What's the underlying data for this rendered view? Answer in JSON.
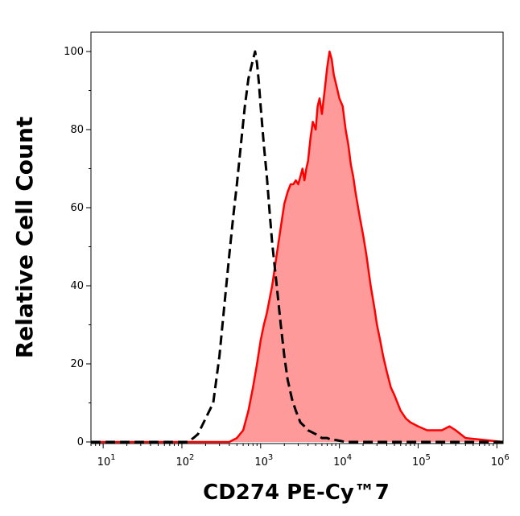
{
  "chart_data": {
    "type": "area",
    "title": "",
    "xlabel": "CD274 PE-Cy™7",
    "ylabel": "Relative Cell Count",
    "x_scale": "log",
    "xlim": [
      7,
      1200000
    ],
    "ylim": [
      0,
      100
    ],
    "x_ticks": [
      {
        "value": 10,
        "base": "10",
        "exp": "1"
      },
      {
        "value": 100,
        "base": "10",
        "exp": "2"
      },
      {
        "value": 1000,
        "base": "10",
        "exp": "3"
      },
      {
        "value": 10000,
        "base": "10",
        "exp": "4"
      },
      {
        "value": 100000,
        "base": "10",
        "exp": "5"
      },
      {
        "value": 1000000,
        "base": "10",
        "exp": "6"
      }
    ],
    "y_ticks": [
      0,
      20,
      40,
      60,
      80,
      100
    ],
    "grid": false,
    "legend": "none",
    "series": [
      {
        "style": "dashed",
        "color": "#000000",
        "fill": "none",
        "x": [
          7,
          120,
          140,
          160,
          200,
          250,
          300,
          350,
          400,
          450,
          500,
          560,
          630,
          700,
          780,
          850,
          900,
          950,
          1000,
          1100,
          1200,
          1300,
          1400,
          1600,
          1800,
          2000,
          2200,
          2500,
          2800,
          3200,
          3600,
          4000,
          5000,
          6000,
          7000,
          8000,
          9000,
          10000,
          12000,
          1200000
        ],
        "y": [
          0,
          0,
          1,
          2,
          6,
          10,
          22,
          36,
          48,
          58,
          66,
          76,
          86,
          93,
          97,
          100,
          97,
          92,
          86,
          76,
          68,
          59,
          51,
          40,
          30,
          22,
          16,
          11,
          8,
          5,
          4,
          3,
          2,
          1,
          1,
          0.5,
          0.5,
          0.3,
          0,
          0
        ]
      },
      {
        "style": "solid",
        "color": "#ff0000",
        "fill": "#ff9a9a",
        "x": [
          7,
          400,
          500,
          600,
          700,
          800,
          900,
          1000,
          1100,
          1200,
          1400,
          1600,
          1800,
          2000,
          2200,
          2400,
          2600,
          2800,
          3000,
          3200,
          3400,
          3600,
          3800,
          4000,
          4300,
          4600,
          5000,
          5300,
          5600,
          6000,
          6500,
          7000,
          7500,
          8000,
          8500,
          9000,
          9500,
          10000,
          11000,
          12000,
          13000,
          14000,
          15000,
          16000,
          18000,
          20000,
          22000,
          25000,
          28000,
          30000,
          33000,
          36000,
          40000,
          45000,
          50000,
          60000,
          70000,
          80000,
          100000,
          130000,
          160000,
          200000,
          250000,
          300000,
          400000,
          1200000
        ],
        "y": [
          0,
          0,
          1,
          3,
          8,
          14,
          20,
          26,
          30,
          33,
          40,
          48,
          55,
          61,
          64,
          66,
          66,
          67,
          66,
          68,
          70,
          67,
          70,
          72,
          78,
          82,
          80,
          86,
          88,
          84,
          90,
          96,
          100,
          98,
          94,
          92,
          90,
          88,
          86,
          80,
          76,
          71,
          68,
          64,
          58,
          53,
          48,
          40,
          34,
          30,
          26,
          22,
          18,
          14,
          12,
          8,
          6,
          5,
          4,
          3,
          3,
          3,
          4,
          3,
          1,
          0
        ]
      }
    ]
  }
}
